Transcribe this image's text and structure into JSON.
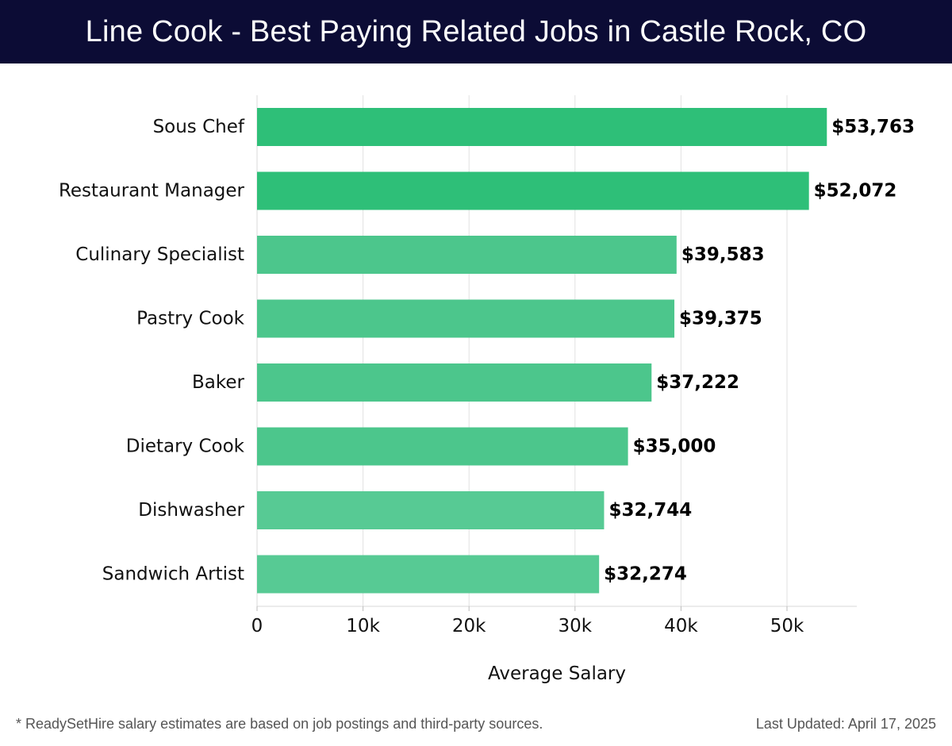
{
  "header": {
    "title": "Line Cook - Best Paying Related Jobs in Castle Rock, CO"
  },
  "chart_data": {
    "type": "bar",
    "orientation": "horizontal",
    "title": "Line Cook - Best Paying Related Jobs in Castle Rock, CO",
    "xlabel": "Average Salary",
    "ylabel": "",
    "xlim": [
      0,
      56500
    ],
    "xticks": [
      0,
      10000,
      20000,
      30000,
      40000,
      50000
    ],
    "xtick_labels": [
      "0",
      "10k",
      "20k",
      "30k",
      "40k",
      "50k"
    ],
    "grid": true,
    "categories": [
      "Sous Chef",
      "Restaurant Manager",
      "Culinary Specialist",
      "Pastry Cook",
      "Baker",
      "Dietary Cook",
      "Dishwasher",
      "Sandwich Artist"
    ],
    "values": [
      53763,
      52072,
      39583,
      39375,
      37222,
      35000,
      32744,
      32274
    ],
    "value_labels": [
      "$53,763",
      "$52,072",
      "$39,583",
      "$39,375",
      "$37,222",
      "$35,000",
      "$32,744",
      "$32,274"
    ],
    "bar_colors": [
      "#2ebf78",
      "#2ebf78",
      "#4cc68c",
      "#4cc68c",
      "#4cc68c",
      "#4cc68c",
      "#57ca94",
      "#57ca94"
    ]
  },
  "footer": {
    "note": "* ReadySetHire salary estimates are based on job postings and third-party sources.",
    "updated": "Last Updated: April 17, 2025"
  }
}
